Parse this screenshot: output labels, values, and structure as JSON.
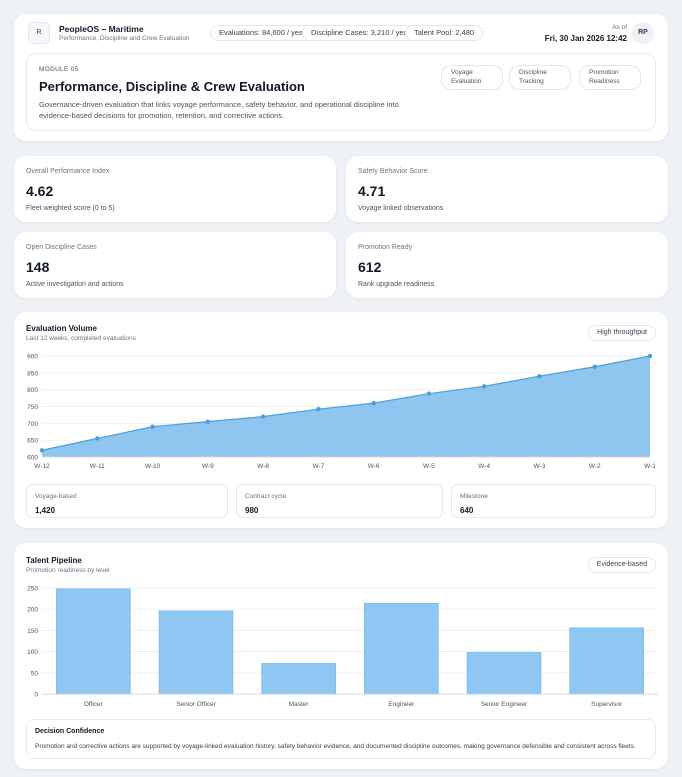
{
  "header": {
    "logo_letter": "R",
    "app_title": "PeopleOS – Maritime",
    "app_subtitle": "Performance, Discipline and Crew Evaluation",
    "badges": [
      "Evaluations: 84,600 / year",
      "Discipline Cases: 3,210 / year",
      "Talent Pool: 2,480"
    ],
    "as_of_label": "As of",
    "as_of_date": "Fri, 30 Jan 2026 12:42",
    "user_initials": "RP"
  },
  "module": {
    "eyebrow": "MODULE 05",
    "title": "Performance, Discipline & Crew Evaluation",
    "description_line1": "Governance-driven evaluation that links voyage performance, safety behavior, and operational discipline into",
    "description_line2": "evidence-based decisions for promotion, retention, and corrective actions.",
    "tags": [
      {
        "line1": "Voyage",
        "line2": "Evaluation"
      },
      {
        "line1": "Discipline",
        "line2": "Tracking"
      },
      {
        "line1": "Promotion",
        "line2": "Readiness"
      }
    ]
  },
  "kpis": [
    {
      "label": "Overall Performance Index",
      "value": "4.62",
      "sub": "Fleet weighted score (0 to 5)"
    },
    {
      "label": "Safety Behavior Score",
      "value": "4.71",
      "sub": "Voyage linked observations"
    },
    {
      "label": "Open Discipline Cases",
      "value": "148",
      "sub": "Active investigation and actions"
    },
    {
      "label": "Promotion Ready",
      "value": "612",
      "sub": "Rank upgrade readiness"
    }
  ],
  "evaluation_volume": {
    "title": "Evaluation Volume",
    "subtitle": "Last 12 weeks, completed evaluations",
    "badge": "High throughput",
    "stats": [
      {
        "label": "Voyage-based",
        "value": "1,420"
      },
      {
        "label": "Contract cycle",
        "value": "980"
      },
      {
        "label": "Milestone",
        "value": "640"
      }
    ]
  },
  "talent_pipeline": {
    "title": "Talent Pipeline",
    "subtitle": "Promotion readiness by level",
    "badge": "Evidence-based"
  },
  "decision": {
    "title": "Decision Confidence",
    "text": "Promotion and corrective actions are supported by voyage-linked evaluation history, safety behavior evidence, and documented discipline outcomes, making governance defensible and consistent across fleets."
  },
  "chart_data": [
    {
      "type": "area",
      "categories": [
        "W-12",
        "W-11",
        "W-10",
        "W-9",
        "W-8",
        "W-7",
        "W-6",
        "W-5",
        "W-4",
        "W-3",
        "W-2",
        "W-1"
      ],
      "values": [
        620,
        655,
        690,
        705,
        720,
        742,
        760,
        788,
        810,
        840,
        868,
        900
      ],
      "ylim": [
        600,
        900
      ],
      "yticks": [
        600,
        650,
        700,
        750,
        800,
        850,
        900
      ],
      "grid": true,
      "color": "#7bbcec",
      "line_color": "#4b9fd8"
    },
    {
      "type": "bar",
      "categories": [
        "Officer",
        "Senior Officer",
        "Master",
        "Engineer",
        "Senior Engineer",
        "Supervisor"
      ],
      "values": [
        248,
        196,
        72,
        214,
        98,
        156
      ],
      "ylim": [
        0,
        250
      ],
      "yticks": [
        0,
        50,
        100,
        150,
        200,
        250
      ],
      "grid": true,
      "color": "#8ec7f1"
    }
  ]
}
